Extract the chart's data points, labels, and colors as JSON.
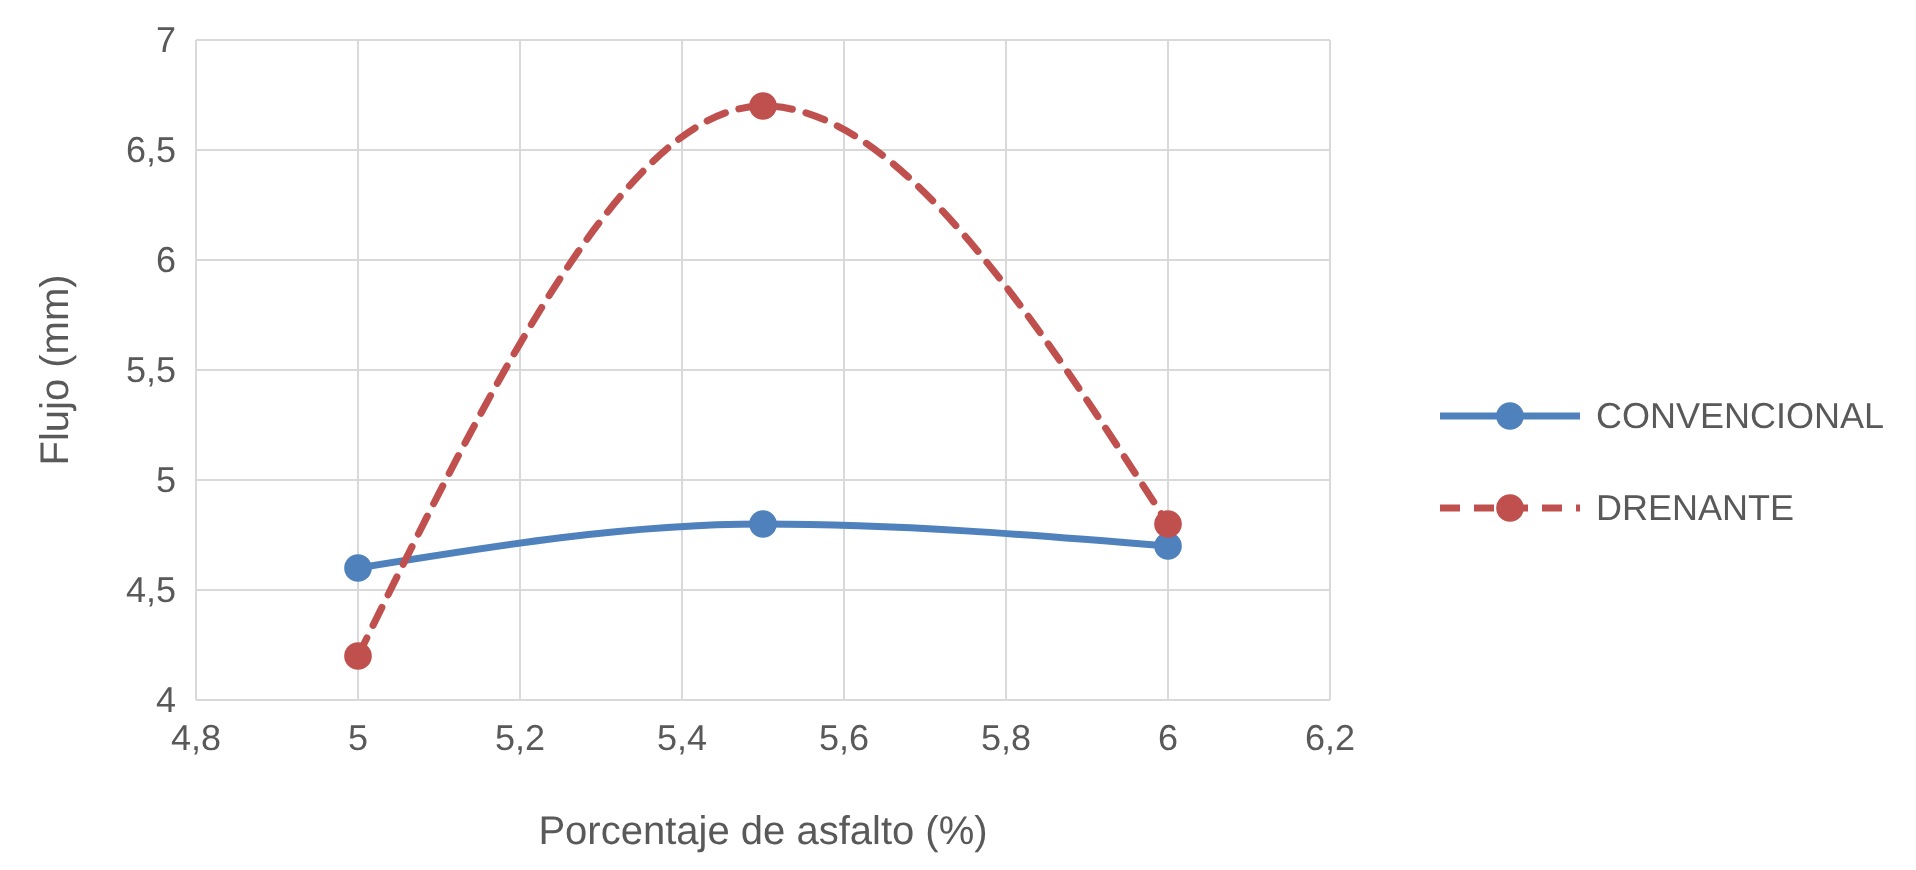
{
  "chart_data": {
    "type": "line",
    "xlabel": "Porcentaje de asfalto (%)",
    "ylabel": "Flujo (mm)",
    "x": [
      5,
      5.5,
      6
    ],
    "series": [
      {
        "name": "CONVENCIONAL",
        "color": "#4f81bd",
        "values": [
          4.6,
          4.8,
          4.7
        ],
        "line_style": "solid"
      },
      {
        "name": "DRENANTE",
        "color": "#c0504d",
        "values": [
          4.2,
          6.7,
          4.8
        ],
        "line_style": "dashed"
      }
    ],
    "xlim": [
      4.8,
      6.2
    ],
    "xticks": [
      {
        "value": 4.8,
        "label": "4,8"
      },
      {
        "value": 5,
        "label": "5"
      },
      {
        "value": 5.2,
        "label": "5,2"
      },
      {
        "value": 5.4,
        "label": "5,4"
      },
      {
        "value": 5.6,
        "label": "5,6"
      },
      {
        "value": 5.8,
        "label": "5,8"
      },
      {
        "value": 6,
        "label": "6"
      },
      {
        "value": 6.2,
        "label": "6,2"
      }
    ],
    "ylim": [
      4,
      7
    ],
    "yticks": [
      {
        "value": 4,
        "label": "4"
      },
      {
        "value": 4.5,
        "label": "4,5"
      },
      {
        "value": 5,
        "label": "5"
      },
      {
        "value": 5.5,
        "label": "5,5"
      },
      {
        "value": 6,
        "label": "6"
      },
      {
        "value": 6.5,
        "label": "6,5"
      },
      {
        "value": 7,
        "label": "7"
      }
    ],
    "grid": true,
    "legend": "right",
    "marker": "circle"
  }
}
